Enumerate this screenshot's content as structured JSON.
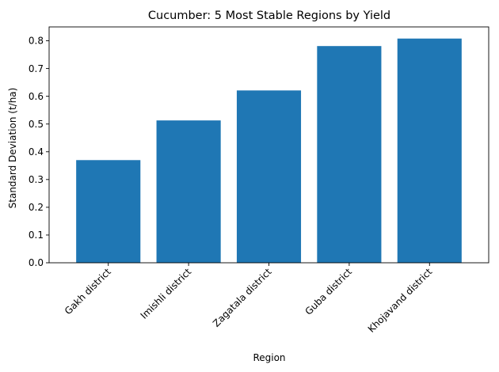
{
  "chart_data": {
    "type": "bar",
    "title": "Cucumber: 5 Most Stable Regions by Yield",
    "xlabel": "Region",
    "ylabel": "Standard Deviation (t/ha)",
    "categories": [
      "Gakh district",
      "Imishli district",
      "Zagatala district",
      "Guba district",
      "Khojavand district"
    ],
    "values": [
      0.37,
      0.513,
      0.621,
      0.781,
      0.808
    ],
    "ylim": [
      0,
      0.85
    ],
    "yticks": [
      "0.0",
      "0.1",
      "0.2",
      "0.3",
      "0.4",
      "0.5",
      "0.6",
      "0.7",
      "0.8"
    ],
    "bar_color": "#1f77b4",
    "grid": false,
    "legend": "none",
    "xtick_rotation": "45 degrees"
  }
}
